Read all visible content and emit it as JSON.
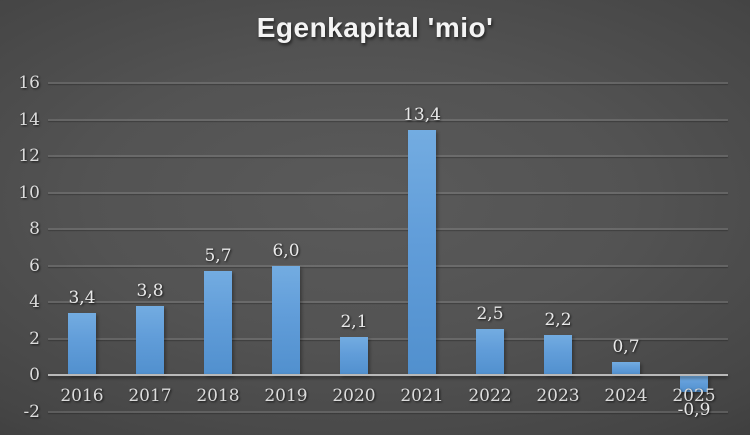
{
  "chart_data": {
    "type": "bar",
    "title": "Egenkapital 'mio'",
    "categories": [
      "2016",
      "2017",
      "2018",
      "2019",
      "2020",
      "2021",
      "2022",
      "2023",
      "2024",
      "2025"
    ],
    "values": [
      3.4,
      3.8,
      5.7,
      6.0,
      2.1,
      13.4,
      2.5,
      2.2,
      0.7,
      -0.9
    ],
    "value_labels": [
      "3,4",
      "3,8",
      "5,7",
      "6,0",
      "2,1",
      "13,4",
      "2,5",
      "2,2",
      "0,7",
      "-0,9"
    ],
    "xlabel": "",
    "ylabel": "",
    "ylim": [
      -2,
      16
    ],
    "yticks": [
      16,
      14,
      12,
      10,
      8,
      6,
      4,
      2,
      0,
      -2
    ],
    "grid": true,
    "legend": "none",
    "decimal_separator": ",",
    "series_count": 1,
    "colors": {
      "bar_top": "#73ACE1",
      "bar_bottom": "#5190CE",
      "background_center": "#575757",
      "background_edge": "#232323",
      "tick_label": "#DCDCDC",
      "data_label": "#E9E9E9",
      "title": "#F4F4F4",
      "gridline": "rgba(255,255,255,0.13)",
      "zero_axis_line": "#B9B9B9"
    }
  }
}
